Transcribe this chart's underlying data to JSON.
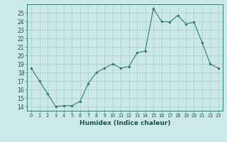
{
  "x": [
    0,
    1,
    2,
    3,
    4,
    5,
    6,
    7,
    8,
    9,
    10,
    11,
    12,
    13,
    14,
    15,
    16,
    17,
    18,
    19,
    20,
    21,
    22,
    23
  ],
  "y": [
    18.5,
    17.0,
    15.5,
    14.0,
    14.1,
    14.1,
    14.6,
    16.7,
    18.0,
    18.5,
    19.0,
    18.5,
    18.7,
    20.3,
    20.5,
    25.5,
    24.0,
    23.9,
    24.7,
    23.7,
    23.9,
    21.5,
    19.0,
    18.5
  ],
  "xlabel": "Humidex (Indice chaleur)",
  "line_color": "#2e7d6e",
  "marker_color": "#2e7d6e",
  "bg_color": "#cce8e8",
  "grid_color": "#aacccc",
  "axis_color": "#2e7d6e",
  "tick_label_color": "#1a5050",
  "xlim": [
    -0.5,
    23.5
  ],
  "ylim": [
    13.5,
    26.0
  ],
  "yticks": [
    14,
    15,
    16,
    17,
    18,
    19,
    20,
    21,
    22,
    23,
    24,
    25
  ],
  "xticks": [
    0,
    1,
    2,
    3,
    4,
    5,
    6,
    7,
    8,
    9,
    10,
    11,
    12,
    13,
    14,
    15,
    16,
    17,
    18,
    19,
    20,
    21,
    22,
    23
  ]
}
